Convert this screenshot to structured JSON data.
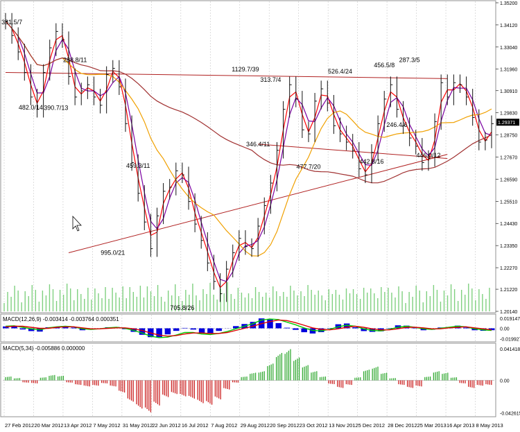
{
  "chart_data": [
    {
      "type": "line",
      "panel": "price",
      "y_ticks": [
        "1.35200",
        "1.34120",
        "1.33040",
        "1.31960",
        "1.30910",
        "1.29830",
        "1.28750",
        "1.27670",
        "1.26590",
        "1.25510",
        "1.24430",
        "1.23350",
        "1.22270",
        "1.21220",
        "1.20140"
      ],
      "ylim": [
        1.2014,
        1.352
      ],
      "current_price": "1.29371",
      "x_ticks": [
        "27 Feb 2012",
        "20 Mar 2012",
        "13 Apr 2012",
        "7 May 2012",
        "31 May 2012",
        "22 Jun 2012",
        "16 Jul 2012",
        "7 Aug 2012",
        "29 Aug 2012",
        "20 Sep 2012",
        "23 Oct 2012",
        "13 Nov 2012",
        "5 Dec 2012",
        "28 Dec 2012",
        "25 Mar 2013",
        "16 Apr 2013",
        "8 May 2013"
      ],
      "zigzag_labels": [
        {
          "text": "381.5/7",
          "x": 1,
          "y": 1.3415
        },
        {
          "text": "482.0/14",
          "x": 4,
          "y": 1.2999
        },
        {
          "text": "288.8/11",
          "x": 11,
          "y": 1.323
        },
        {
          "text": "390.7/13",
          "x": 8,
          "y": 1.2997
        },
        {
          "text": "459.3/11",
          "x": 21,
          "y": 1.2715
        },
        {
          "text": "995.0/21",
          "x": 17,
          "y": 1.229
        },
        {
          "text": "705.8/26",
          "x": 28,
          "y": 1.202
        },
        {
          "text": "1129.7/39",
          "x": 38,
          "y": 1.3185
        },
        {
          "text": "313.7/4",
          "x": 42,
          "y": 1.3135
        },
        {
          "text": "346.4/11",
          "x": 40,
          "y": 1.282
        },
        {
          "text": "477.7/20",
          "x": 48,
          "y": 1.271
        },
        {
          "text": "526.4/24",
          "x": 53,
          "y": 1.3175
        },
        {
          "text": "442.8/16",
          "x": 58,
          "y": 1.2735
        },
        {
          "text": "456.5/8",
          "x": 60,
          "y": 1.3205
        },
        {
          "text": "287.3/5",
          "x": 64,
          "y": 1.323
        },
        {
          "text": "246.4/6",
          "x": 62,
          "y": 1.2915
        },
        {
          "text": "446.0/12",
          "x": 67,
          "y": 1.2765
        }
      ],
      "series": [
        {
          "kind": "price",
          "color": "#000000",
          "values": [
            1.343,
            1.336,
            1.328,
            1.318,
            1.306,
            1.3,
            1.318,
            1.33,
            1.338,
            1.334,
            1.316,
            1.306,
            1.309,
            1.312,
            1.306,
            1.302,
            1.317,
            1.32,
            1.311,
            1.293,
            1.274,
            1.259,
            1.245,
            1.232,
            1.248,
            1.26,
            1.262,
            1.27,
            1.268,
            1.255,
            1.244,
            1.236,
            1.225,
            1.216,
            1.21,
            1.222,
            1.23,
            1.237,
            1.233,
            1.232,
            1.243,
            1.253,
            1.264,
            1.28,
            1.3,
            1.312,
            1.305,
            1.29,
            1.288,
            1.304,
            1.31,
            1.303,
            1.292,
            1.288,
            1.284,
            1.28,
            1.271,
            1.268,
            1.279,
            1.293,
            1.305,
            1.312,
            1.3,
            1.292,
            1.286,
            1.282,
            1.274,
            1.276,
            1.294,
            1.313,
            1.306,
            1.313,
            1.312,
            1.306,
            1.296,
            1.284,
            1.285,
            1.293
          ]
        },
        {
          "kind": "ma-fast",
          "color": "#ff0000",
          "values": []
        },
        {
          "kind": "ma-mid",
          "color": "#7a00a0",
          "values": []
        },
        {
          "kind": "ma-slow",
          "color": "#f0a000",
          "values": []
        },
        {
          "kind": "ma-long",
          "color": "#a03030",
          "values": []
        }
      ],
      "trendlines": [
        {
          "color": "#b02020",
          "from": [
            10,
            1.23
          ],
          "to": [
            70,
            1.278
          ]
        },
        {
          "color": "#b02020",
          "from": [
            0,
            1.318
          ],
          "to": [
            70,
            1.315
          ]
        },
        {
          "color": "#b02020",
          "from": [
            40,
            1.283
          ],
          "to": [
            70,
            1.276
          ]
        }
      ],
      "grid": "vertical"
    },
    {
      "type": "line",
      "panel": "macd",
      "title": "MACD(12,26,9) -0.003414 -0.003764 0.000351",
      "y_ticks": [
        "0.019147",
        "0.00",
        "-0.019927"
      ],
      "ylim": [
        -0.0235,
        0.0235
      ],
      "series": [
        {
          "name": "MACD",
          "color": "#00cc00",
          "values": [
            0.004,
            0.005,
            0.002,
            -0.001,
            -0.003,
            0.001,
            0.003,
            0.004,
            0.003,
            -0.001,
            -0.002,
            -0.001,
            0.001,
            0.002,
            0.0,
            -0.004,
            -0.009,
            -0.015,
            -0.018,
            -0.017,
            -0.013,
            -0.008,
            -0.008,
            -0.011,
            -0.012,
            -0.01,
            -0.006,
            -0.001,
            0.004,
            0.009,
            0.016,
            0.018,
            0.017,
            0.012,
            0.007,
            0.001,
            -0.004,
            -0.005,
            -0.002,
            0.003,
            0.006,
            0.004,
            -0.001,
            -0.004,
            -0.005,
            -0.002,
            0.002,
            0.004,
            0.002,
            -0.001,
            -0.002,
            0.0,
            0.002,
            0.004,
            0.003,
            -0.001,
            -0.003,
            -0.004
          ]
        },
        {
          "name": "Signal",
          "color": "#dd0000",
          "values": [
            0.003,
            0.004,
            0.004,
            0.002,
            0.0,
            0.0,
            0.002,
            0.003,
            0.003,
            0.001,
            -0.001,
            -0.001,
            0.0,
            0.001,
            0.001,
            -0.001,
            -0.004,
            -0.009,
            -0.013,
            -0.015,
            -0.014,
            -0.011,
            -0.009,
            -0.009,
            -0.01,
            -0.01,
            -0.008,
            -0.004,
            0.0,
            0.004,
            0.009,
            0.013,
            0.016,
            0.015,
            0.011,
            0.006,
            0.001,
            -0.002,
            -0.003,
            -0.001,
            0.002,
            0.004,
            0.002,
            -0.001,
            -0.003,
            -0.003,
            -0.001,
            0.002,
            0.002,
            0.001,
            -0.001,
            -0.001,
            0.001,
            0.002,
            0.003,
            0.001,
            -0.001,
            -0.003
          ]
        },
        {
          "name": "Histogram",
          "color": "#0000dd",
          "values": []
        }
      ]
    },
    {
      "type": "bar",
      "panel": "macd2",
      "title": "MACD(5,34) -0.005886 0.000000",
      "y_ticks": [
        "0.041418",
        "0.00",
        "-0.042615"
      ],
      "ylim": [
        -0.046,
        0.046
      ],
      "series": [
        {
          "name": "MACD",
          "color_up": "#33aa33",
          "color_down": "#cc2222",
          "values": [
            0.005,
            0.003,
            -0.003,
            -0.004,
            0.004,
            0.007,
            0.006,
            -0.003,
            -0.006,
            -0.008,
            -0.007,
            -0.004,
            -0.008,
            -0.016,
            -0.028,
            -0.037,
            -0.042,
            -0.033,
            -0.022,
            -0.018,
            -0.021,
            -0.024,
            -0.03,
            -0.032,
            -0.025,
            -0.012,
            -0.003,
            0.005,
            0.01,
            0.012,
            0.022,
            0.036,
            0.041,
            0.03,
            0.02,
            0.012,
            0.005,
            -0.005,
            -0.01,
            -0.006,
            0.004,
            0.014,
            0.018,
            0.01,
            0.003,
            -0.006,
            -0.01,
            -0.008,
            0.005,
            0.012,
            0.01,
            0.004,
            -0.004,
            -0.01,
            -0.007,
            -0.006
          ]
        }
      ]
    }
  ]
}
